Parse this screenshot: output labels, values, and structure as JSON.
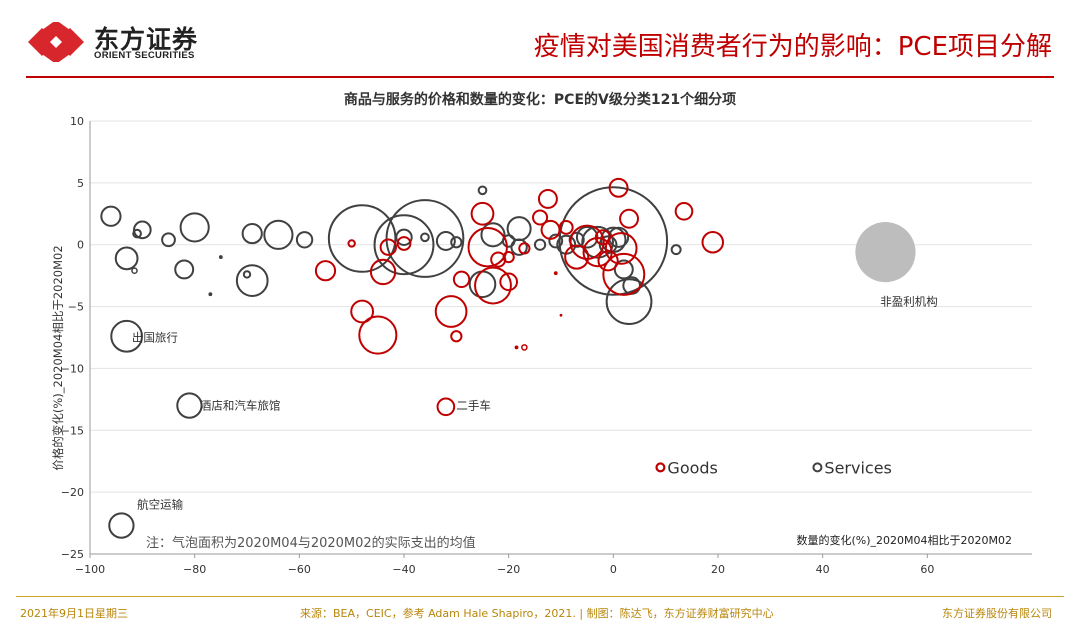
{
  "header": {
    "logo_cn": "东方证券",
    "logo_en": "ORIENT SECURITIES",
    "title": "疫情对美国消费者行为的影响：PCE项目分解"
  },
  "chart_data": {
    "type": "scatter",
    "bubble": true,
    "title": "商品与服务的价格和数量的变化：PCE的V级分类121个细分项",
    "xlabel": "数量的变化(%)_2020M04相比于2020M02",
    "ylabel": "价格的变化(%)_2020M04相比于2020M02",
    "xlim": [
      -100,
      80
    ],
    "ylim": [
      -25,
      10
    ],
    "xticks": [
      -100,
      -80,
      -60,
      -40,
      -20,
      0,
      20,
      40,
      60
    ],
    "yticks": [
      10,
      5,
      0,
      -5,
      -10,
      -15,
      -20,
      -25
    ],
    "grid": "horizontal",
    "note": "注：气泡面积为2020M04与2020M02的实际支出的均值",
    "legend": [
      {
        "name": "Goods",
        "color": "#c00000"
      },
      {
        "name": "Services",
        "color": "#404040"
      }
    ],
    "annotations": [
      {
        "text": "出国旅行",
        "x": -92,
        "y": -7.5
      },
      {
        "text": "酒店和汽车旅馆",
        "x": -79,
        "y": -13
      },
      {
        "text": "二手车",
        "x": -30,
        "y": -13
      },
      {
        "text": "航空运输",
        "x": -91,
        "y": -21
      },
      {
        "text": "非盈利机构",
        "x": 51,
        "y": -4.6
      }
    ],
    "series": [
      {
        "name": "Services",
        "color": "#404040",
        "points": [
          {
            "x": -96,
            "y": 2.3,
            "r": 1.5
          },
          {
            "x": -90,
            "y": 1.2,
            "r": 1.3
          },
          {
            "x": -91,
            "y": 0.9,
            "r": 0.6
          },
          {
            "x": -85,
            "y": 0.4,
            "r": 1.0
          },
          {
            "x": -80,
            "y": 1.4,
            "r": 2.2
          },
          {
            "x": -93,
            "y": -1.1,
            "r": 1.7
          },
          {
            "x": -93,
            "y": -7.4,
            "r": 2.4
          },
          {
            "x": -81,
            "y": -13,
            "r": 1.9
          },
          {
            "x": -94,
            "y": -22.7,
            "r": 1.9
          },
          {
            "x": -91.5,
            "y": -2.1,
            "r": 0.4
          },
          {
            "x": -82,
            "y": -2.0,
            "r": 1.4
          },
          {
            "x": -75,
            "y": -1.0,
            "r": 0.3
          },
          {
            "x": -77,
            "y": -4.0,
            "r": 0.3
          },
          {
            "x": -70,
            "y": -2.4,
            "r": 0.5
          },
          {
            "x": -69,
            "y": -2.9,
            "r": 2.4
          },
          {
            "x": -69,
            "y": 0.9,
            "r": 1.5
          },
          {
            "x": -64,
            "y": 0.8,
            "r": 2.2
          },
          {
            "x": -59,
            "y": 0.4,
            "r": 1.2
          },
          {
            "x": -48,
            "y": 0.5,
            "r": 5.2
          },
          {
            "x": -40,
            "y": 0.0,
            "r": 4.6
          },
          {
            "x": -36,
            "y": 0.5,
            "r": 6.0
          },
          {
            "x": -40,
            "y": 0.6,
            "r": 1.2
          },
          {
            "x": -36,
            "y": 0.6,
            "r": 0.6
          },
          {
            "x": -32,
            "y": 0.3,
            "r": 1.4
          },
          {
            "x": -30,
            "y": 0.2,
            "r": 0.8
          },
          {
            "x": -25,
            "y": 4.4,
            "r": 0.6
          },
          {
            "x": -23,
            "y": 0.8,
            "r": 1.8
          },
          {
            "x": -20,
            "y": 0.3,
            "r": 0.9
          },
          {
            "x": -18,
            "y": 1.3,
            "r": 1.8
          },
          {
            "x": -18,
            "y": -0.2,
            "r": 1.2
          },
          {
            "x": -25,
            "y": -3.2,
            "r": 2.0
          },
          {
            "x": -14,
            "y": 0.0,
            "r": 0.8
          },
          {
            "x": -11,
            "y": 0.3,
            "r": 1.0
          },
          {
            "x": -9,
            "y": 0.0,
            "r": 1.4
          },
          {
            "x": -7,
            "y": 0.4,
            "r": 1.1
          },
          {
            "x": -5,
            "y": 0.6,
            "r": 1.6
          },
          {
            "x": -3,
            "y": 0.2,
            "r": 2.4
          },
          {
            "x": -1,
            "y": 0.0,
            "r": 1.3
          },
          {
            "x": 0,
            "y": 0.4,
            "r": 1.9
          },
          {
            "x": 1,
            "y": 0.6,
            "r": 1.5
          },
          {
            "x": 0,
            "y": 0.3,
            "r": 8.4
          },
          {
            "x": 2,
            "y": -2.0,
            "r": 1.4
          },
          {
            "x": 3.5,
            "y": -3.3,
            "r": 1.3
          },
          {
            "x": 3,
            "y": -4.6,
            "r": 3.5
          },
          {
            "x": 12,
            "y": -0.4,
            "r": 0.7
          },
          {
            "x": 52,
            "y": -0.6,
            "r": 4.7,
            "filled": true
          }
        ]
      },
      {
        "name": "Goods",
        "color": "#c00000",
        "points": [
          {
            "x": -50,
            "y": 0.1,
            "r": 0.5
          },
          {
            "x": -55,
            "y": -2.1,
            "r": 1.5
          },
          {
            "x": -48,
            "y": -5.4,
            "r": 1.7
          },
          {
            "x": -45,
            "y": -7.3,
            "r": 2.9
          },
          {
            "x": -44,
            "y": -2.2,
            "r": 1.9
          },
          {
            "x": -43,
            "y": -0.2,
            "r": 1.2
          },
          {
            "x": -40,
            "y": 0.1,
            "r": 1.0
          },
          {
            "x": -31,
            "y": -5.4,
            "r": 2.4
          },
          {
            "x": -30,
            "y": -7.4,
            "r": 0.8
          },
          {
            "x": -32,
            "y": -13.1,
            "r": 1.3
          },
          {
            "x": -29,
            "y": -2.8,
            "r": 1.2
          },
          {
            "x": -24,
            "y": -0.2,
            "r": 3.0
          },
          {
            "x": -22,
            "y": -1.2,
            "r": 1.1
          },
          {
            "x": -23,
            "y": -3.3,
            "r": 2.8
          },
          {
            "x": -25,
            "y": 2.5,
            "r": 1.7
          },
          {
            "x": -20,
            "y": -3.0,
            "r": 1.3
          },
          {
            "x": -20,
            "y": -1.0,
            "r": 0.8
          },
          {
            "x": -18.5,
            "y": -8.3,
            "r": 0.3
          },
          {
            "x": -17,
            "y": -8.3,
            "r": 0.4
          },
          {
            "x": -17,
            "y": -0.3,
            "r": 0.8
          },
          {
            "x": -14,
            "y": 2.2,
            "r": 1.1
          },
          {
            "x": -12.5,
            "y": 3.7,
            "r": 1.4
          },
          {
            "x": -12,
            "y": 1.2,
            "r": 1.4
          },
          {
            "x": -11,
            "y": -2.3,
            "r": 0.3
          },
          {
            "x": -10,
            "y": -5.7,
            "r": 0.2
          },
          {
            "x": -9,
            "y": 1.4,
            "r": 1.0
          },
          {
            "x": -7,
            "y": -1.0,
            "r": 1.8
          },
          {
            "x": -5,
            "y": 0.2,
            "r": 2.6
          },
          {
            "x": -3,
            "y": -0.6,
            "r": 2.2
          },
          {
            "x": -1,
            "y": -1.3,
            "r": 1.5
          },
          {
            "x": 1,
            "y": 4.6,
            "r": 1.4
          },
          {
            "x": 1.5,
            "y": -0.3,
            "r": 2.4
          },
          {
            "x": 2,
            "y": -2.4,
            "r": 3.2
          },
          {
            "x": 3,
            "y": 2.1,
            "r": 1.4
          },
          {
            "x": -2,
            "y": 0.6,
            "r": 1.1
          },
          {
            "x": 13.5,
            "y": 2.7,
            "r": 1.3
          },
          {
            "x": 19,
            "y": 0.2,
            "r": 1.6
          },
          {
            "x": 9,
            "y": -18,
            "r": 0.6
          }
        ]
      }
    ]
  },
  "footer": {
    "date": "2021年9月1日星期三",
    "source": "来源：BEA，CEIC，参考 Adam Hale Shapiro，2021. | 制图：陈达飞，东方证券财富研究中心",
    "company": "东方证券股份有限公司"
  }
}
